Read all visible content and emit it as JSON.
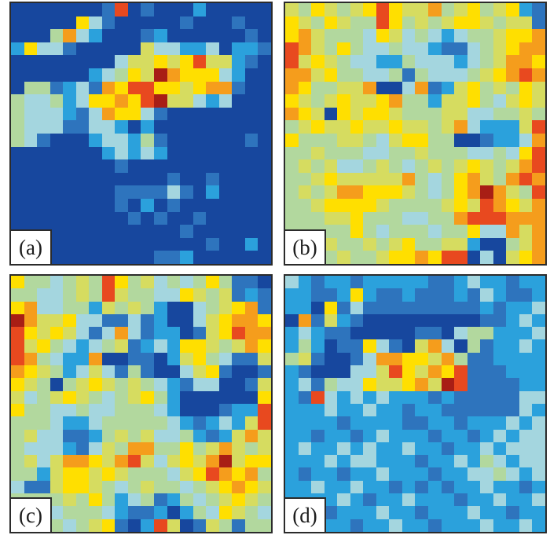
{
  "figure": {
    "description": "Four pixelated heatmap panels arranged in a 2x2 grid, jet-style colormap, each panel 20x20 cells with a white framed label box in the bottom-left corner",
    "panel_border_color": "#2b2b2b",
    "background_color": "#ffffff"
  },
  "palette": {
    "N": "#17479e",
    "B": "#2e74bd",
    "S": "#2ba1dc",
    "C": "#a4d6df",
    "G": "#b2d89e",
    "K": "#d6dc60",
    "Y": "#ffdf00",
    "O": "#f59d1c",
    "R": "#e8491f",
    "D": "#a81e15"
  },
  "value_scale": {
    "note": "approximate normalized value per color class (jet colormap order)",
    "N": 0.05,
    "B": 0.2,
    "S": 0.35,
    "C": 0.5,
    "G": 0.6,
    "K": 0.7,
    "Y": 0.8,
    "O": 0.88,
    "R": 0.95,
    "D": 1.0
  },
  "chart_data": [
    {
      "type": "heatmap",
      "label": "(a)",
      "grid_size": [
        20,
        20
      ],
      "dominant_background": "N",
      "cells": [
        "NNNNNNNBRNBNNNSNNNNN",
        "NNNNNYCBNNNNNBNNNBNN",
        "NNNGOCSNNNBSNNNNNNBN",
        "SYCCBNNNNNKCCSSCNSSB",
        "NNNNNNNNCKKYKYRKKSBN",
        "NNNNNNSCGYKDOYYYCSNN",
        "NGGBSCBOYRRYYKYOOBNN",
        "GCCGSCYYOYRDKKCSCNNN",
        "GCCCSBCOYYCBNNNNNNNN",
        "GCCCBBCCSNSNNNNNNNNN",
        "GCBNNNSCCSGBNNNNNNBN",
        "NNNNNNNSCSCSNNNNNNNN",
        "NNNNNNNNBNNNNNNNNNNN",
        "NNNNNNNNNNNNBNNBNNNN",
        "NNNNNNNNBBBBCBNSNNNN",
        "NNNNNNNNBNSNBNNNNNNN",
        "NNNNNNNNNBNBNNBNNNNN",
        "NNNNNNNNNNNNNBNNNNNN",
        "NNNNNNNNNNNNNNNBNNSN",
        "NNNNNNNNNNNBBSNNNNNN"
      ]
    },
    {
      "type": "heatmap",
      "label": "(b)",
      "grid_size": [
        20,
        20
      ],
      "dominant_background": "G",
      "cells": [
        "KGYKGKYRYKKOGKYGKYSB",
        "YKGYKGGRYGKGKYYKGKKB",
        "YOKGGGCYKCGCSCGGKYYO",
        "ROKGYGCCGCCSBBCGKYOO",
        "RKYKGCCSSGCCCSCGKOOY",
        "OOKYGGCCGBGCCCGKYORO",
        "OYGGKKONNCOBSKYGKGYK",
        "YKGKYKKYOGGSKKYGCKYK",
        "OYKNYKYYKGGGKKCCGGKG",
        "GKYKKYKKYKKGKOCSSSKR",
        "YGGGKKGCKYYGGNNBSSCO",
        "GGKGGGCCGGKGGGCCGCYR",
        "GKGKCCGKGCGKGKYKGKOR",
        "GGKYKKKKKOGCGYOKGORO",
        "GKGKOOYYYKGCGYODOKGR",
        "GGKYYYYKGGGGKYKROYKO",
        "GGGKKYGGGCCGGORRROOO",
        "GGGGGYGCGGGCGGYCCOKO",
        "GGGKGGKGKYGGKKSNNGKO",
        "GGGGKGGKYYOYRRNCNKYO"
      ]
    },
    {
      "type": "heatmap",
      "label": "(c)",
      "grid_size": [
        20,
        20
      ],
      "dominant_background": "G",
      "cells": [
        "YGGCGKGRYGKCGCGYGBBN",
        "GGCCGKGRKGGCCYKGKBSB",
        "YOCCGGSKGKGSNNCGKYOB",
        "DOKKYCCBBCBSNNCKYOOY",
        "RYKYKCBCOCBSSNBKYROO",
        "RKYGCSCGKBSCSYYKGKOY",
        "ROGCSSONNBBNSKYGCBBK",
        "OYKGSCKCBGBNNCKYBNNB",
        "YKGNGKYKGKGCSBCCNNBK",
        "KCGKYKGCGKYGSNNNNNNY",
        "YGGCCGCCGGGCSNNNBSSR",
        "GGGCSSCGGGGGCSBSCSKR",
        "GKCCBBSGKGKCCGSBSKOK",
        "GCCCSBCKGOOGGYGKOKGK",
        "GKCKOOYKORKCKYKODKYY",
        "GGSKYYKYKGGGCKYROYOG",
        "CBBKYYKGCGKGGCGKYOYK",
        "GGGGKGYGSCGBSGCGKYKG",
        "GGGCGGGCSBBSNSGCYKGC",
        "GGGGCGKYBNSRKNBKGBGG"
      ]
    },
    {
      "type": "heatmap",
      "label": "(d)",
      "grid_size": [
        20,
        20
      ],
      "dominant_background": "S",
      "cells": [
        "CSBSSBSSSSSBBSCSSBSS",
        "SSBBSYSBBSBBBSBCSBBS",
        "SSNYBCBBBBBBBBBSBSSC",
        "NOBKSBNNNNNNNNNBBSCS",
        "SCSBBNNNNNBBNCGGSSSC",
        "SGSNBBYCBNKOCNGBSSCS",
        "GKBNNBCOOYYKOGBBSSSS",
        "SBNNNCCKRYKOYRBBBSSS",
        "SCBGCCYKKYOKDRBBBBSS",
        "SBRCSCSCSSSBSBBBBBCC",
        "SSSCSSCSSBSSBBBBBBCS",
        "SSSSBSSSSBBSSBSSSCSC",
        "SSBSSBSCSSSBSSBSCSCC",
        "SCSSCSCSSCSSBSSCSCCC",
        "SSSCSCCSSSBSSCSGCSCC",
        "SBSSBSSCSSSBSSCCGCSC",
        "SSCSSCSSBSBSBSSCSSBS",
        "SSSSCSBSSCSSSBSSCSSC",
        "SSSBSSSCSSBSSSCSSBSS",
        "SSSSSBSSCSSBSSSCSSCS"
      ]
    }
  ]
}
